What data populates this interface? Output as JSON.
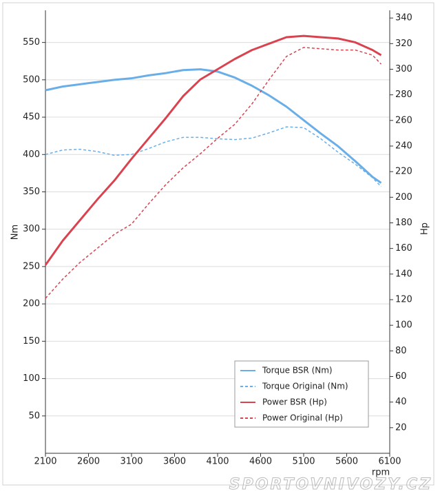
{
  "chart_data": {
    "type": "line",
    "x": [
      2100,
      2300,
      2500,
      2700,
      2900,
      3100,
      3300,
      3500,
      3700,
      3900,
      4100,
      4300,
      4500,
      4700,
      4900,
      5100,
      5300,
      5500,
      5700,
      5900,
      6000
    ],
    "series": [
      {
        "name": "Torque BSR (Nm)",
        "color": "#6aaee8",
        "dash": false,
        "values": [
          486,
          491,
          494,
          497,
          500,
          502,
          506,
          509,
          513,
          514,
          511,
          503,
          492,
          479,
          464,
          446,
          428,
          411,
          391,
          370,
          362
        ]
      },
      {
        "name": "Torque Original (Nm)",
        "color": "#6aaee8",
        "dash": true,
        "values": [
          400,
          406,
          407,
          404,
          399,
          400,
          408,
          417,
          423,
          423,
          421,
          420,
          422,
          429,
          437,
          436,
          421,
          403,
          387,
          369,
          357
        ]
      },
      {
        "name": "Power BSR (Hp)",
        "color": "#d9434f",
        "dash": false,
        "axis": "y2",
        "values": [
          147,
          166,
          182,
          198,
          213,
          230,
          246,
          262,
          279,
          292,
          300,
          308,
          315,
          320,
          325,
          326,
          325,
          324,
          321,
          315,
          311
        ]
      },
      {
        "name": "Power Original (Hp)",
        "color": "#d9434f",
        "dash": true,
        "axis": "y2",
        "values": [
          121,
          136,
          149,
          160,
          171,
          179,
          195,
          210,
          223,
          234,
          246,
          257,
          273,
          292,
          310,
          317,
          316,
          315,
          315,
          311,
          304
        ]
      }
    ],
    "xlabel": "rpm",
    "ylabel": "Nm",
    "y2label": "Hp",
    "xlim": [
      2100,
      6100
    ],
    "xticks": [
      2100,
      2600,
      3100,
      3600,
      4100,
      4600,
      5100,
      5600,
      6100
    ],
    "ylim": [
      0,
      593
    ],
    "yticks": [
      50,
      100,
      150,
      200,
      250,
      300,
      350,
      400,
      450,
      500,
      550
    ],
    "y2lim": [
      0,
      346
    ],
    "y2ticks": [
      20,
      40,
      60,
      80,
      100,
      120,
      140,
      160,
      180,
      200,
      220,
      240,
      260,
      280,
      300,
      320,
      340
    ],
    "grid": true,
    "legend": "lower right",
    "watermark": "SPORTOVNIVOZY.CZ"
  }
}
